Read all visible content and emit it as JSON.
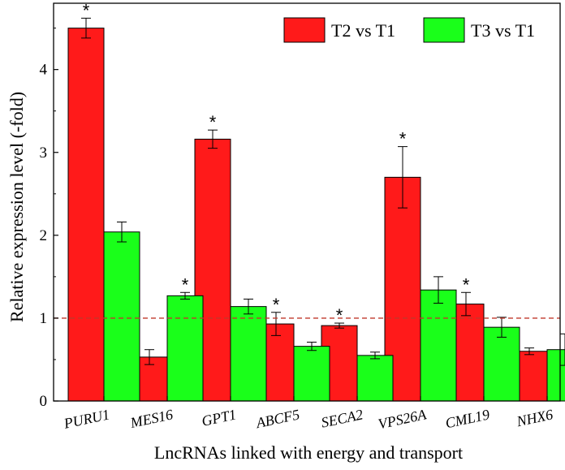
{
  "chart_data": {
    "type": "bar",
    "xlabel": "LncRNAs linked with energy and transport",
    "ylabel": "Relative expression level (-fold)",
    "ylim": [
      0,
      4.8
    ],
    "yticks": [
      "0",
      "1",
      "2",
      "3",
      "4"
    ],
    "categories": [
      "PURU1",
      "MES16",
      "GPT1",
      "ABCF5",
      "SECA2",
      "VPS26A",
      "CML19",
      "NHX6"
    ],
    "series": [
      {
        "name": "T2 vs T1",
        "color": "#ff1a1a",
        "values": [
          4.5,
          0.53,
          3.16,
          0.93,
          0.91,
          2.7,
          1.17,
          0.6
        ],
        "errors": [
          0.12,
          0.09,
          0.11,
          0.14,
          0.03,
          0.37,
          0.14,
          0.04
        ],
        "significant": [
          true,
          false,
          true,
          true,
          true,
          true,
          true,
          false
        ]
      },
      {
        "name": "T3 vs T1",
        "color": "#1aff1a",
        "values": [
          2.04,
          1.27,
          1.14,
          0.66,
          0.55,
          1.34,
          0.89,
          0.62
        ],
        "errors": [
          0.12,
          0.04,
          0.09,
          0.05,
          0.04,
          0.16,
          0.12,
          0.19
        ],
        "significant": [
          false,
          true,
          false,
          false,
          false,
          false,
          false,
          false
        ]
      }
    ],
    "significance_marker": "*",
    "reference_line": {
      "value": 1,
      "color": "#c0392b",
      "style": "dashed"
    },
    "legend": {
      "position": "top-right"
    },
    "grid": false
  }
}
